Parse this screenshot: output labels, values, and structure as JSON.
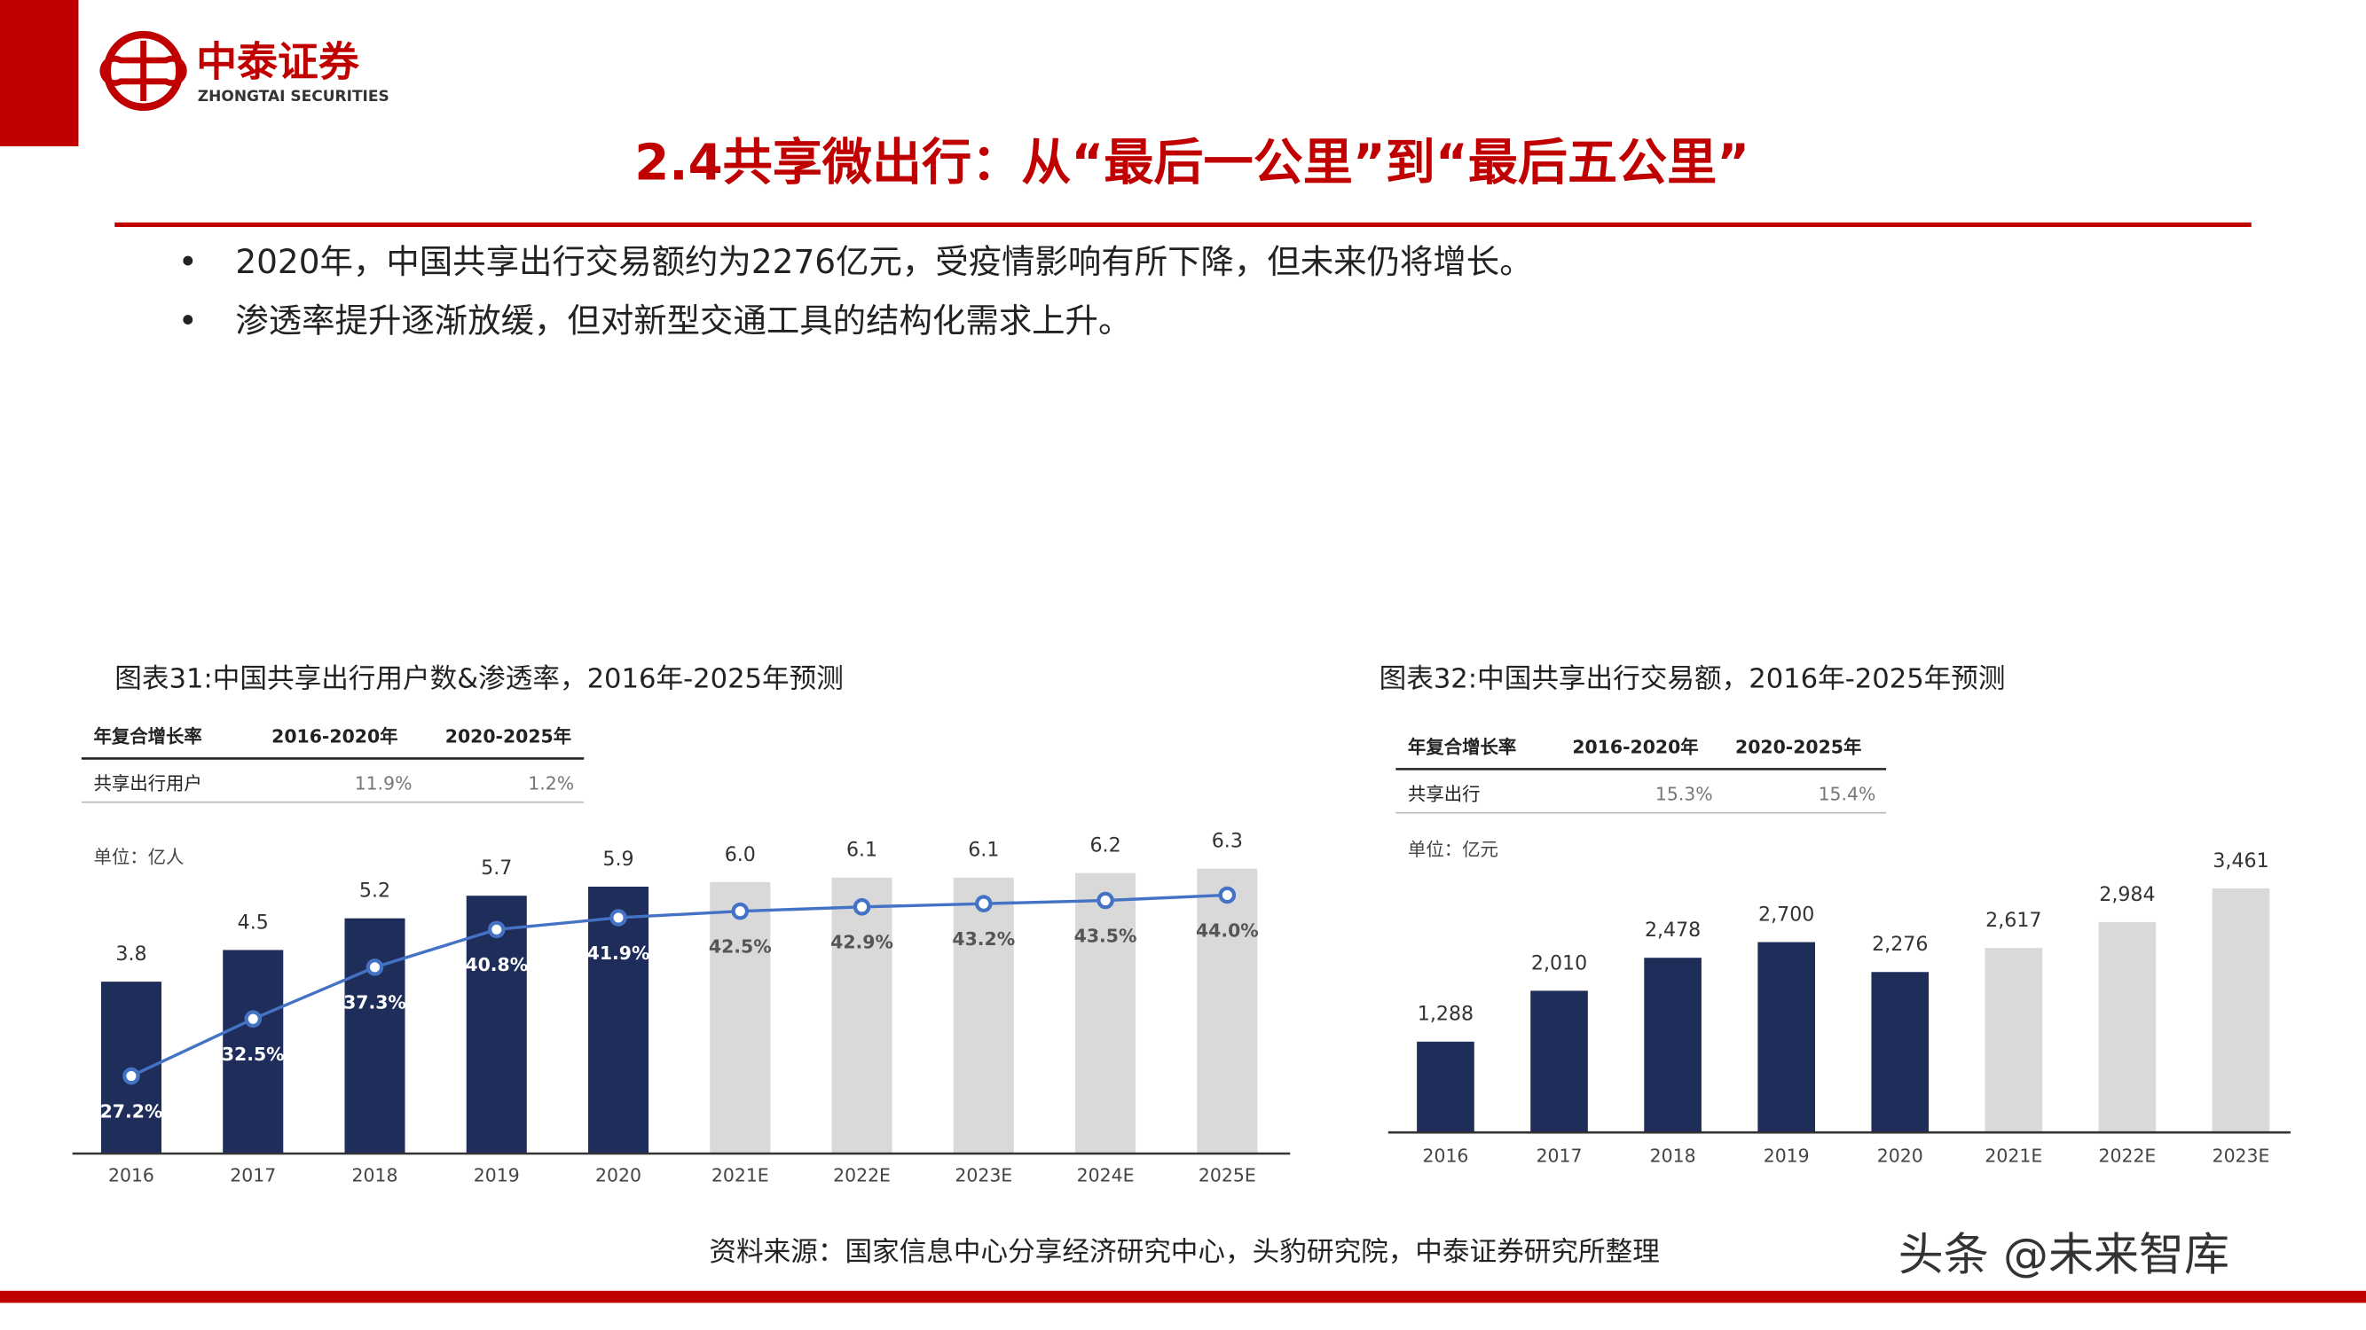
{
  "header": {
    "logo_cn": "中泰证券",
    "logo_en": "ZHONGTAI SECURITIES",
    "title": "2.4共享微出行：从“最后一公里”到“最后五公里”"
  },
  "bullets": [
    "2020年，中国共享出行交易额约为2276亿元，受疫情影响有所下降，但未来仍将增长。",
    "渗透率提升逐渐放缓，但对新型交通工具的结构化需求上升。"
  ],
  "chart_data": [
    {
      "type": "bar_line",
      "title": "图表31:中国共享出行用户数&渗透率，2016年-2025年预测",
      "cagr_table": {
        "header": [
          "年复合增长率",
          "2016-2020年",
          "2020-2025年"
        ],
        "rows": [
          [
            "共享出行用户",
            "11.9%",
            "1.2%"
          ]
        ]
      },
      "unit": "单位：亿人",
      "categories": [
        "2016",
        "2017",
        "2018",
        "2019",
        "2020",
        "2021E",
        "2022E",
        "2023E",
        "2024E",
        "2025E"
      ],
      "ylim": [
        0,
        7
      ],
      "y2lim": [
        20,
        49.4
      ],
      "series": [
        {
          "type": "bar",
          "colors": [
            "#1f2d5a",
            "#1f2d5a",
            "#1f2d5a",
            "#1f2d5a",
            "#1f2d5a",
            "#d9d9d9",
            "#d9d9d9",
            "#d9d9d9",
            "#d9d9d9",
            "#d9d9d9"
          ],
          "values": [
            3.8,
            4.5,
            5.2,
            5.7,
            5.9,
            6.0,
            6.1,
            6.1,
            6.2,
            6.3
          ],
          "value_labels": [
            "3.8",
            "4.5",
            "5.2",
            "5.7",
            "5.9",
            "6.0",
            "6.1",
            "6.1",
            "6.2",
            "6.3"
          ]
        },
        {
          "type": "line",
          "axis": "y2",
          "color": "#4472c4",
          "values": [
            27.2,
            32.5,
            37.3,
            40.8,
            41.9,
            42.5,
            42.9,
            43.2,
            43.5,
            44.0
          ],
          "value_labels": [
            "27.2%",
            "32.5%",
            "37.3%",
            "40.8%",
            "41.9%",
            "42.5%",
            "42.9%",
            "43.2%",
            "43.5%",
            "44.0%"
          ]
        }
      ]
    },
    {
      "type": "bar",
      "title": "图表32:中国共享出行交易额，2016年-2025年预测",
      "cagr_table": {
        "header": [
          "年复合增长率",
          "2016-2020年",
          "2020-2025年"
        ],
        "rows": [
          [
            "共享出行",
            "15.3%",
            "15.4%"
          ]
        ]
      },
      "unit": "单位：亿元",
      "categories": [
        "2016",
        "2017",
        "2018",
        "2019",
        "2020",
        "2021E",
        "2022E",
        "2023E"
      ],
      "ylim": [
        0,
        4000
      ],
      "series": [
        {
          "type": "bar",
          "colors": [
            "#1f2d5a",
            "#1f2d5a",
            "#1f2d5a",
            "#1f2d5a",
            "#1f2d5a",
            "#d9d9d9",
            "#d9d9d9",
            "#d9d9d9"
          ],
          "values": [
            1288,
            2010,
            2478,
            2700,
            2276,
            2617,
            2984,
            3461
          ],
          "value_labels": [
            "1,288",
            "2,010",
            "2,478",
            "2,700",
            "2,276",
            "2,617",
            "2,984",
            "3,461"
          ]
        }
      ]
    }
  ],
  "source": "资料来源：国家信息中心分享经济研究中心，头豹研究院，中泰证券研究所整理",
  "watermark": "头条 @未来智库"
}
